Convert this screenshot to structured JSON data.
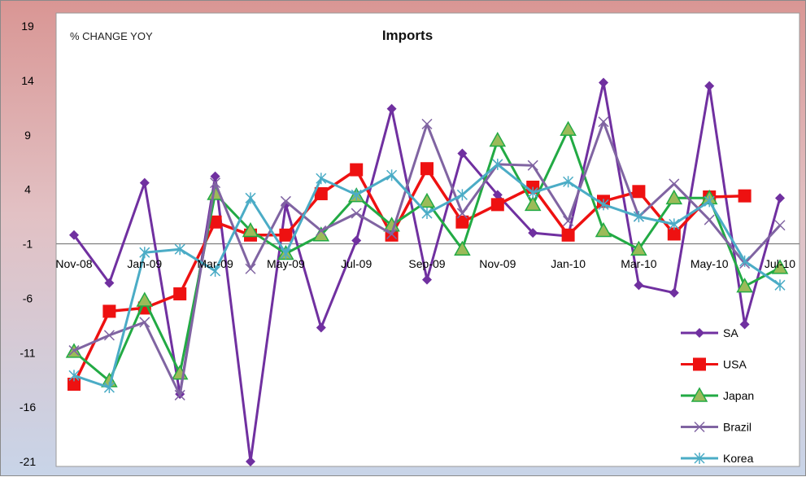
{
  "chart_data": {
    "type": "line",
    "title": "Imports",
    "ylabel": "% CHANGE YOY",
    "xlabel": "",
    "ylim": [
      -21,
      19
    ],
    "yticks": [
      19,
      14,
      9,
      4,
      -1,
      -6,
      -11,
      -16,
      -21
    ],
    "baseline": -1,
    "x": [
      "Nov-08",
      "Dec-08",
      "Jan-09",
      "Feb-09",
      "Mar-09",
      "Apr-09",
      "May-09",
      "Jun-09",
      "Jul-09",
      "Aug-09",
      "Sep-09",
      "Oct-09",
      "Nov-09",
      "Dec-09",
      "Jan-10",
      "Feb-10",
      "Mar-10",
      "Apr-10",
      "May-10",
      "Jun-10",
      "Jul-10"
    ],
    "xtick_labels": [
      "Nov-08",
      "",
      "Jan-09",
      "",
      "Mar-09",
      "",
      "May-09",
      "",
      "Jul-09",
      "",
      "Sep-09",
      "",
      "Nov-09",
      "",
      "Jan-10",
      "",
      "Mar-10",
      "",
      "May-10",
      "",
      "Jul-10"
    ],
    "legend_position": "right-bottom",
    "series": [
      {
        "name": "SA",
        "color": "#7030a0",
        "marker": "diamond",
        "values": [
          -0.2,
          -4.6,
          4.6,
          -14.8,
          5.2,
          -21.0,
          2.6,
          -8.7,
          -0.7,
          11.4,
          -4.3,
          7.3,
          3.5,
          0.0,
          -0.3,
          13.8,
          -4.8,
          -5.5,
          13.5,
          -8.4,
          3.2
        ]
      },
      {
        "name": "USA",
        "color": "#ee1111",
        "marker": "square",
        "values": [
          -13.9,
          -7.2,
          -6.9,
          -5.6,
          1.0,
          -0.2,
          -0.2,
          3.6,
          5.8,
          -0.2,
          5.9,
          1.0,
          2.6,
          4.2,
          -0.2,
          2.9,
          3.8,
          -0.1,
          3.3,
          3.4,
          null
        ]
      },
      {
        "name": "Japan",
        "color": "#22aa44",
        "marker": "triangle",
        "values": [
          -10.9,
          -13.6,
          -6.2,
          -12.9,
          3.6,
          0.2,
          -1.9,
          -0.2,
          3.4,
          0.7,
          2.9,
          -1.5,
          8.5,
          2.6,
          9.5,
          0.2,
          -1.5,
          3.2,
          3.2,
          -4.9,
          -3.2
        ]
      },
      {
        "name": "Brazil",
        "color": "#8064a2",
        "marker": "x",
        "values": [
          -10.8,
          -9.4,
          -8.2,
          -14.9,
          4.6,
          -3.3,
          2.9,
          0.2,
          1.8,
          -0.1,
          10.0,
          1.8,
          6.3,
          6.2,
          1.1,
          10.2,
          1.5,
          4.5,
          1.2,
          -2.8,
          0.7
        ]
      },
      {
        "name": "Korea",
        "color": "#4bacc6",
        "marker": "star",
        "values": [
          -13.1,
          -14.2,
          -1.8,
          -1.5,
          -3.5,
          3.2,
          -1.9,
          5.0,
          3.5,
          5.3,
          1.8,
          3.5,
          6.3,
          3.7,
          4.7,
          2.6,
          1.5,
          0.8,
          2.9,
          -2.6,
          -4.8
        ]
      }
    ]
  }
}
